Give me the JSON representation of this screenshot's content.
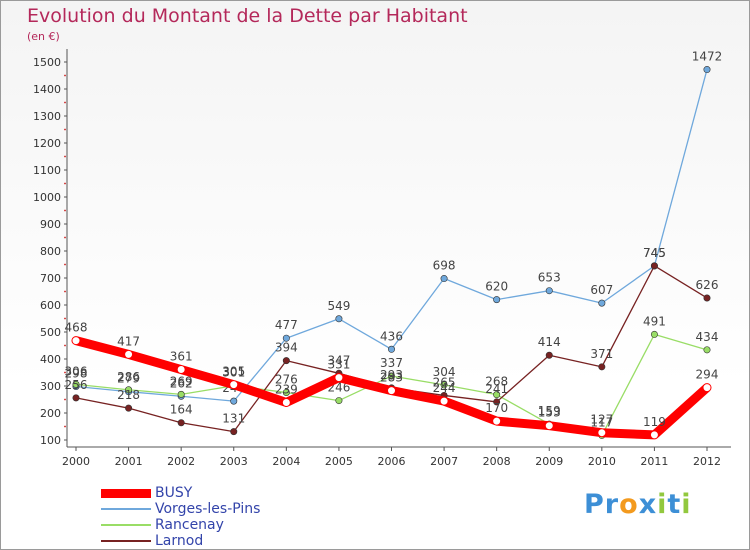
{
  "chart_data": {
    "type": "line",
    "title": "Evolution du Montant de la Dette par Habitant",
    "subtitle": "(en €)",
    "x": [
      "2000",
      "2001",
      "2002",
      "2003",
      "2004",
      "2005",
      "2006",
      "2007",
      "2008",
      "2009",
      "2010",
      "2011",
      "2012"
    ],
    "ylim": [
      100,
      1500
    ],
    "yticks": [
      100,
      200,
      300,
      400,
      500,
      600,
      700,
      800,
      900,
      1000,
      1100,
      1200,
      1300,
      1400,
      1500
    ],
    "grid": false,
    "legend_position": "bottom-left",
    "series": [
      {
        "name": "BUSY",
        "color": "#ff0000",
        "values": [
          468,
          417,
          361,
          305,
          239,
          331,
          283,
          244,
          170,
          153,
          127,
          119,
          294
        ]
      },
      {
        "name": "Vorges-les-Pins",
        "color": "#6fa8dc",
        "values": [
          298,
          279,
          262,
          244,
          477,
          549,
          436,
          698,
          620,
          653,
          607,
          745,
          1472
        ]
      },
      {
        "name": "Rancenay",
        "color": "#99dd66",
        "values": [
          306,
          286,
          269,
          301,
          276,
          246,
          337,
          304,
          268,
          159,
          117,
          491,
          434
        ]
      },
      {
        "name": "Larnod",
        "color": "#772222",
        "values": [
          256,
          218,
          164,
          131,
          394,
          347,
          293,
          265,
          241,
          414,
          371,
          745,
          626
        ]
      }
    ]
  },
  "logo": {
    "text": "Proxiti",
    "letters": [
      {
        "ch": "P",
        "color": "#3d8fd6"
      },
      {
        "ch": "r",
        "color": "#3d8fd6"
      },
      {
        "ch": "o",
        "color": "#f39a1e"
      },
      {
        "ch": "x",
        "color": "#3d8fd6"
      },
      {
        "ch": "i",
        "color": "#92c83e"
      },
      {
        "ch": "t",
        "color": "#3d8fd6"
      },
      {
        "ch": "i",
        "color": "#92c83e"
      }
    ]
  }
}
